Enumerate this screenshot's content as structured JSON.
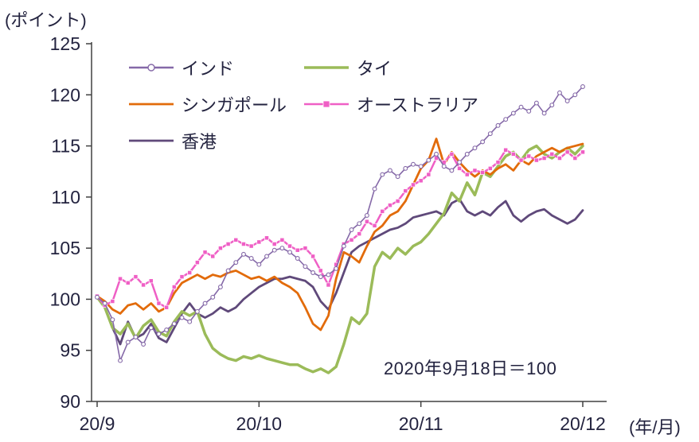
{
  "labels": {
    "unit": "(ポイント)",
    "x_unit": "(年/月)",
    "base_note": "2020年9月18日＝100"
  },
  "colors": {
    "text": "#23233f",
    "axis": "#404040",
    "background": "#ffffff"
  },
  "chart_data": {
    "type": "line",
    "title": "",
    "ylabel": "(ポイント)",
    "xlabel": "(年/月)",
    "annotation": "2020年9月18日＝100",
    "grid": false,
    "legend_position": "top-left-inside",
    "ylim": [
      90,
      125
    ],
    "y_ticks": [
      90,
      95,
      100,
      105,
      110,
      115,
      120,
      125
    ],
    "x_tick_labels": [
      "20/9",
      "20/10",
      "20/11",
      "20/12"
    ],
    "x_tick_indices": [
      0,
      21,
      42,
      63
    ],
    "series": [
      {
        "name": "インド",
        "color": "#8569A8",
        "marker": "circle",
        "width": 1.6,
        "values": [
          100.2,
          99.6,
          98.0,
          94.0,
          95.8,
          96.3,
          95.6,
          97.2,
          96.6,
          97.0,
          97.6,
          98.2,
          97.8,
          98.8,
          99.6,
          100.2,
          101.2,
          102.8,
          103.6,
          104.4,
          104.0,
          103.4,
          104.2,
          104.8,
          105.0,
          104.6,
          104.0,
          103.2,
          102.6,
          102.2,
          102.4,
          103.0,
          105.2,
          106.8,
          107.4,
          108.2,
          110.8,
          112.2,
          112.6,
          112.0,
          112.8,
          113.2,
          113.0,
          113.6,
          114.2,
          113.0,
          112.6,
          113.4,
          114.2,
          114.8,
          115.4,
          116.2,
          117.0,
          117.6,
          118.2,
          118.8,
          118.4,
          119.2,
          118.2,
          119.0,
          120.2,
          119.4,
          120.0,
          120.8
        ]
      },
      {
        "name": "タイ",
        "color": "#9BBB59",
        "marker": "none",
        "width": 3.5,
        "values": [
          100.2,
          99.2,
          97.2,
          96.6,
          97.6,
          96.2,
          97.4,
          98.0,
          96.8,
          96.4,
          97.8,
          98.8,
          98.4,
          98.8,
          96.6,
          95.2,
          94.6,
          94.2,
          94.0,
          94.4,
          94.2,
          94.5,
          94.2,
          94.0,
          93.8,
          93.6,
          93.6,
          93.2,
          92.9,
          93.2,
          92.8,
          93.4,
          95.6,
          98.2,
          97.6,
          98.6,
          103.2,
          104.6,
          104.0,
          105.0,
          104.4,
          105.2,
          105.6,
          106.4,
          107.4,
          108.4,
          110.4,
          109.6,
          111.4,
          110.2,
          112.4,
          112.0,
          113.0,
          114.0,
          114.4,
          113.6,
          114.6,
          115.0,
          114.2,
          113.8,
          114.4,
          114.8,
          114.2,
          115.0
        ]
      },
      {
        "name": "シンガポール",
        "color": "#E26B0A",
        "marker": "none",
        "width": 2.8,
        "values": [
          100.3,
          99.8,
          99.0,
          98.6,
          99.4,
          99.6,
          99.0,
          99.6,
          98.8,
          99.2,
          100.6,
          101.6,
          102.0,
          102.4,
          102.0,
          102.4,
          102.2,
          102.6,
          102.8,
          102.4,
          102.0,
          102.2,
          101.8,
          102.2,
          101.6,
          101.2,
          100.6,
          99.2,
          97.6,
          97.0,
          98.4,
          102.0,
          104.6,
          104.2,
          103.6,
          105.2,
          106.6,
          107.2,
          108.2,
          108.6,
          109.6,
          111.2,
          112.8,
          113.6,
          115.7,
          113.2,
          114.4,
          113.4,
          112.6,
          112.0,
          112.6,
          112.2,
          112.8,
          113.2,
          112.6,
          113.6,
          113.2,
          114.0,
          114.4,
          114.8,
          114.4,
          114.8,
          115.0,
          115.2
        ]
      },
      {
        "name": "オーストラリア",
        "color": "#EF5FC5",
        "marker": "square",
        "width": 2.5,
        "values": [
          100.3,
          99.4,
          99.8,
          102.0,
          101.6,
          102.2,
          101.4,
          101.8,
          99.6,
          99.2,
          101.2,
          102.2,
          102.6,
          103.6,
          104.6,
          104.2,
          105.0,
          105.4,
          105.8,
          105.4,
          105.2,
          105.6,
          106.0,
          105.4,
          105.8,
          105.2,
          104.8,
          105.0,
          104.2,
          102.8,
          101.4,
          103.4,
          105.4,
          105.8,
          106.4,
          107.6,
          107.2,
          108.6,
          109.2,
          109.6,
          110.6,
          111.2,
          111.6,
          112.2,
          113.8,
          113.4,
          114.2,
          112.8,
          112.2,
          112.6,
          112.4,
          112.8,
          113.4,
          114.6,
          114.2,
          113.6,
          114.0,
          113.6,
          113.8,
          114.2,
          113.8,
          114.4,
          113.8,
          114.4
        ]
      },
      {
        "name": "香港",
        "color": "#5F497A",
        "marker": "none",
        "width": 2.8,
        "values": [
          100.3,
          99.2,
          97.2,
          95.6,
          97.8,
          96.2,
          96.6,
          97.6,
          96.2,
          95.8,
          97.2,
          98.6,
          99.6,
          98.6,
          98.2,
          98.6,
          99.2,
          98.8,
          99.2,
          100.0,
          100.6,
          101.2,
          101.6,
          102.0,
          102.0,
          102.2,
          102.0,
          101.8,
          101.2,
          99.8,
          99.0,
          100.6,
          102.6,
          104.6,
          105.2,
          105.6,
          106.0,
          106.4,
          106.8,
          107.0,
          107.4,
          108.0,
          108.2,
          108.4,
          108.6,
          108.2,
          109.4,
          109.8,
          108.6,
          108.2,
          108.6,
          108.2,
          109.0,
          109.6,
          108.2,
          107.6,
          108.2,
          108.6,
          108.8,
          108.2,
          107.8,
          107.4,
          107.8,
          108.7
        ]
      }
    ]
  }
}
